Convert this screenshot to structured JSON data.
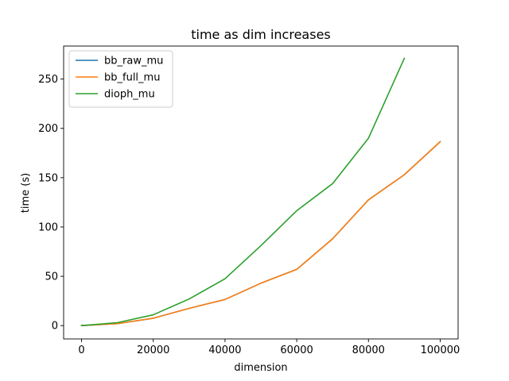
{
  "chart_data": {
    "type": "line",
    "title": "time as dim increases",
    "xlabel": "dimension",
    "ylabel": "time (s)",
    "xlim": [
      -5000,
      105000
    ],
    "ylim": [
      -13.5,
      283.5
    ],
    "xticks": [
      0,
      20000,
      40000,
      60000,
      80000,
      100000
    ],
    "yticks": [
      0,
      50,
      100,
      150,
      200,
      250
    ],
    "grid": false,
    "legend_position": "top-left",
    "series": [
      {
        "name": "bb_raw_mu",
        "color": "#1f77b4",
        "x": [
          0,
          1000,
          10000,
          20000,
          30000,
          40000,
          50000,
          60000,
          70000,
          80000,
          90000,
          100000
        ],
        "y": [
          0.1,
          0.2,
          2.0,
          7.5,
          17.5,
          26.5,
          43.0,
          57.0,
          88.0,
          127.5,
          153.0,
          186.5
        ]
      },
      {
        "name": "bb_full_mu",
        "color": "#ff7f0e",
        "x": [
          0,
          1000,
          10000,
          20000,
          30000,
          40000,
          50000,
          60000,
          70000,
          80000,
          90000,
          100000
        ],
        "y": [
          0.1,
          0.2,
          2.0,
          7.5,
          17.5,
          26.5,
          43.0,
          57.0,
          88.0,
          127.5,
          153.0,
          186.5
        ]
      },
      {
        "name": "dioph_mu",
        "color": "#2ca02c",
        "x": [
          0,
          1000,
          10000,
          20000,
          30000,
          40000,
          50000,
          60000,
          70000,
          80000,
          90000
        ],
        "y": [
          0.1,
          0.3,
          3.0,
          11.0,
          27.0,
          47.5,
          81.0,
          116.5,
          144.0,
          190.0,
          271.0
        ]
      }
    ]
  }
}
